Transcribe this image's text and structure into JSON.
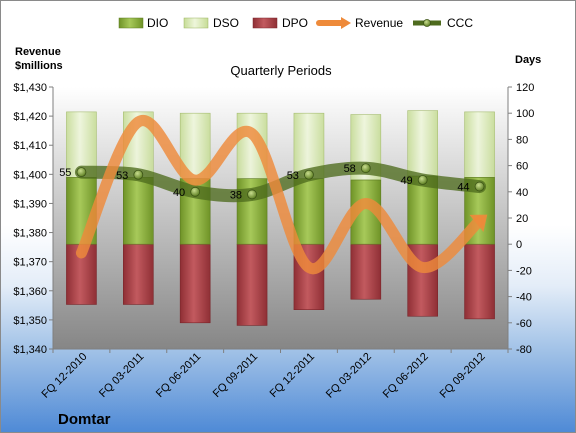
{
  "chart_data": {
    "type": "bar",
    "title": "Quarterly Periods",
    "company": "Domtar",
    "categories": [
      "FQ 12-2010",
      "FQ 03-2011",
      "FQ 06-2011",
      "FQ 09-2011",
      "FQ 12-2011",
      "FQ 03-2012",
      "FQ 06-2012",
      "FQ 09-2012"
    ],
    "series": [
      {
        "name": "DIO",
        "kind": "bar",
        "axis": "right",
        "values": [
          51,
          51,
          50,
          50,
          50,
          49,
          52,
          51
        ]
      },
      {
        "name": "DSO",
        "kind": "bar",
        "axis": "right",
        "values": [
          50,
          50,
          50,
          50,
          50,
          50,
          50,
          50
        ]
      },
      {
        "name": "DPO",
        "kind": "bar",
        "axis": "right",
        "values": [
          -46,
          -46,
          -60,
          -62,
          -50,
          -42,
          -55,
          -57
        ]
      },
      {
        "name": "Revenue",
        "kind": "line",
        "axis": "left",
        "values": [
          1373,
          1418,
          1398,
          1414,
          1368,
          1390,
          1368,
          1384
        ]
      },
      {
        "name": "CCC",
        "kind": "line",
        "axis": "right",
        "values": [
          55,
          53,
          40,
          38,
          53,
          58,
          49,
          44
        ]
      }
    ],
    "ccc_labels": [
      "55",
      "53",
      "40",
      "38",
      "53",
      "58",
      "49",
      "44"
    ],
    "left_axis": {
      "title_line1": "Revenue",
      "title_line2": "$millions",
      "min": 1340,
      "max": 1430,
      "step": 10,
      "prefix": "$"
    },
    "right_axis": {
      "title": "Days",
      "min": -80,
      "max": 120,
      "step": 20
    },
    "legend_position": "top",
    "grid": false,
    "colors": {
      "DIO": "#8fb33b",
      "DSO": "#d9eab6",
      "DPO": "#b2444a",
      "Revenue": "#ee8a3a",
      "CCC": "#4e6b1e",
      "plot_bg_top": "#ffffff",
      "plot_bg_bottom": "#868686"
    }
  }
}
